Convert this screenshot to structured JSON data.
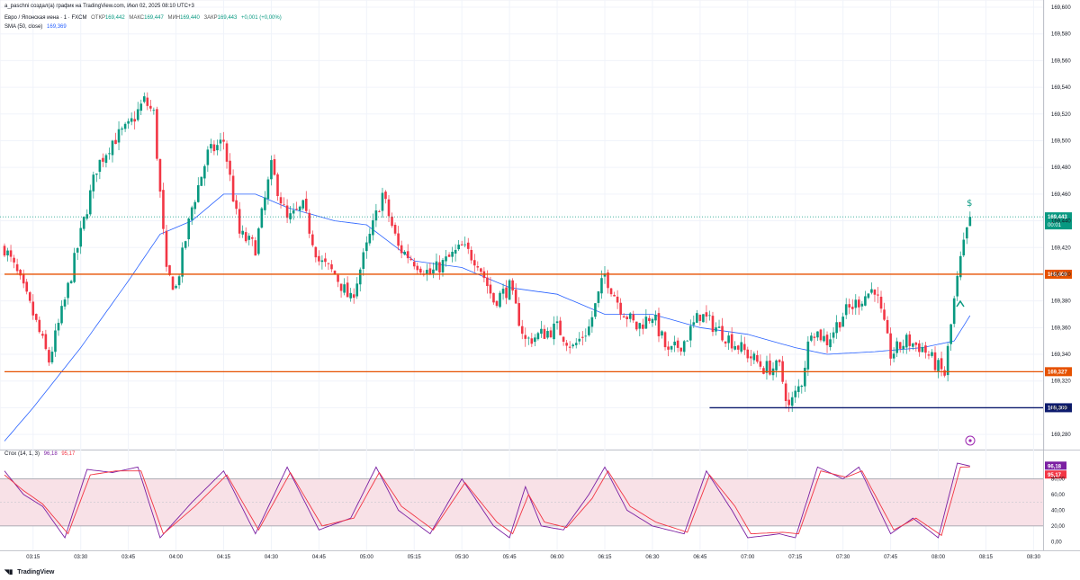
{
  "author_line": "a_paschni создал(а) график на TradingView.com, Июл 02, 2025 08:10 UTC+3",
  "legend": {
    "symbol": "Евро / Японская иена · 1 · FXCM",
    "open_label": "ОТКР",
    "open": "169,442",
    "high_label": "МАКС",
    "high": "169,447",
    "low_label": "МИН",
    "low": "169,440",
    "close_label": "ЗАКР",
    "close": "169,443",
    "change": "+0,001 (+0,00%)",
    "sma_label": "SMA (50, close)",
    "sma_value": "169,369"
  },
  "stoch_legend": {
    "label": "Стох (14, 1, 3)",
    "k": "96,18",
    "d": "95,17"
  },
  "branding": "TradingView",
  "colors": {
    "up": "#089981",
    "down": "#f23645",
    "sma": "#2962ff",
    "level": "#e65100",
    "level_blue": "#0d1b6e",
    "stoch_k": "#7b1fa2",
    "stoch_d": "#f23645",
    "stoch_band": "#f8e1e7"
  },
  "chart_data": [
    {
      "type": "candlestick",
      "y_ticks": [
        "169,600",
        "169,580",
        "169,560",
        "169,540",
        "169,520",
        "169,500",
        "169,480",
        "169,460",
        "169,440",
        "169,420",
        "169,400",
        "169,380",
        "169,360",
        "169,340",
        "169,320",
        "169,300",
        "169,280"
      ],
      "ylim": [
        169.272,
        169.6
      ],
      "x_ticks": [
        "03:15",
        "03:30",
        "03:45",
        "04:00",
        "04:15",
        "04:30",
        "04:45",
        "05:00",
        "05:15",
        "05:30",
        "05:45",
        "06:00",
        "06:15",
        "06:30",
        "06:45",
        "07:00",
        "07:15",
        "07:30",
        "07:45",
        "08:00",
        "08:15",
        "08:30"
      ],
      "xlim": [
        "03:06",
        "08:33"
      ],
      "close_anchors": [
        [
          "03:06",
          169.42
        ],
        [
          "03:10",
          169.4
        ],
        [
          "03:15",
          169.37
        ],
        [
          "03:20",
          169.335
        ],
        [
          "03:25",
          169.38
        ],
        [
          "03:30",
          169.43
        ],
        [
          "03:35",
          169.48
        ],
        [
          "03:40",
          169.5
        ],
        [
          "03:45",
          169.51
        ],
        [
          "03:50",
          169.53
        ],
        [
          "03:53",
          169.52
        ],
        [
          "03:57",
          169.4
        ],
        [
          "04:00",
          169.39
        ],
        [
          "04:05",
          169.45
        ],
        [
          "04:10",
          169.49
        ],
        [
          "04:15",
          169.5
        ],
        [
          "04:20",
          169.43
        ],
        [
          "04:25",
          169.42
        ],
        [
          "04:30",
          169.48
        ],
        [
          "04:35",
          169.44
        ],
        [
          "04:40",
          169.45
        ],
        [
          "04:45",
          169.41
        ],
        [
          "04:50",
          169.4
        ],
        [
          "04:55",
          169.38
        ],
        [
          "05:00",
          169.42
        ],
        [
          "05:05",
          169.46
        ],
        [
          "05:10",
          169.42
        ],
        [
          "05:15",
          169.41
        ],
        [
          "05:20",
          169.4
        ],
        [
          "05:25",
          169.41
        ],
        [
          "05:30",
          169.42
        ],
        [
          "05:35",
          169.41
        ],
        [
          "05:40",
          169.38
        ],
        [
          "05:45",
          169.39
        ],
        [
          "05:50",
          169.35
        ],
        [
          "06:00",
          169.36
        ],
        [
          "06:05",
          169.345
        ],
        [
          "06:10",
          169.36
        ],
        [
          "06:15",
          169.4
        ],
        [
          "06:20",
          169.375
        ],
        [
          "06:25",
          169.36
        ],
        [
          "06:30",
          169.37
        ],
        [
          "06:35",
          169.34
        ],
        [
          "06:40",
          169.35
        ],
        [
          "06:45",
          169.37
        ],
        [
          "06:50",
          169.36
        ],
        [
          "06:55",
          169.35
        ],
        [
          "07:00",
          169.34
        ],
        [
          "07:05",
          169.33
        ],
        [
          "07:10",
          169.33
        ],
        [
          "07:13",
          169.3
        ],
        [
          "07:17",
          169.32
        ],
        [
          "07:20",
          169.36
        ],
        [
          "07:25",
          169.35
        ],
        [
          "07:30",
          169.37
        ],
        [
          "07:35",
          169.38
        ],
        [
          "07:40",
          169.39
        ],
        [
          "07:45",
          169.34
        ],
        [
          "07:50",
          169.35
        ],
        [
          "07:55",
          169.345
        ],
        [
          "08:00",
          169.33
        ],
        [
          "08:02",
          169.325
        ],
        [
          "08:05",
          169.38
        ],
        [
          "08:07",
          169.41
        ],
        [
          "08:10",
          169.443
        ]
      ],
      "sma_anchors": [
        [
          "03:06",
          169.275
        ],
        [
          "03:15",
          169.3
        ],
        [
          "03:30",
          169.345
        ],
        [
          "03:45",
          169.395
        ],
        [
          "03:55",
          169.43
        ],
        [
          "04:05",
          169.44
        ],
        [
          "04:15",
          169.46
        ],
        [
          "04:25",
          169.46
        ],
        [
          "04:35",
          169.45
        ],
        [
          "04:50",
          169.44
        ],
        [
          "05:00",
          169.437
        ],
        [
          "05:15",
          169.41
        ],
        [
          "05:30",
          169.405
        ],
        [
          "05:45",
          169.39
        ],
        [
          "06:00",
          169.385
        ],
        [
          "06:15",
          169.37
        ],
        [
          "06:30",
          169.37
        ],
        [
          "06:45",
          169.36
        ],
        [
          "07:00",
          169.355
        ],
        [
          "07:15",
          169.345
        ],
        [
          "07:25",
          169.34
        ],
        [
          "07:40",
          169.342
        ],
        [
          "07:55",
          169.345
        ],
        [
          "08:05",
          169.35
        ],
        [
          "08:10",
          169.369
        ]
      ],
      "horizontal_levels": [
        {
          "value": 169.4,
          "label": "169,400",
          "color": "#e65100",
          "from": "03:06"
        },
        {
          "value": 169.327,
          "label": "169,327",
          "color": "#e65100",
          "from": "03:06"
        },
        {
          "value": 169.3,
          "label": "169,300",
          "color": "#0d1b6e",
          "from": "06:48"
        }
      ],
      "last_price": {
        "value": 169.443,
        "label": "169,443",
        "timer": "00:01"
      }
    },
    {
      "type": "line",
      "name": "stochastic",
      "y_ticks": [
        "80,00",
        "60,00",
        "40,00",
        "20,00",
        "0,00"
      ],
      "ylim": [
        -3,
        108
      ],
      "bands": [
        20,
        80
      ],
      "k_anchors": [
        [
          "03:06",
          90
        ],
        [
          "03:12",
          60
        ],
        [
          "03:18",
          45
        ],
        [
          "03:25",
          5
        ],
        [
          "03:32",
          92
        ],
        [
          "03:40",
          88
        ],
        [
          "03:48",
          95
        ],
        [
          "03:55",
          5
        ],
        [
          "04:05",
          50
        ],
        [
          "04:15",
          90
        ],
        [
          "04:25",
          10
        ],
        [
          "04:35",
          95
        ],
        [
          "04:45",
          15
        ],
        [
          "04:55",
          30
        ],
        [
          "05:03",
          95
        ],
        [
          "05:10",
          40
        ],
        [
          "05:20",
          10
        ],
        [
          "05:30",
          80
        ],
        [
          "05:40",
          20
        ],
        [
          "05:45",
          5
        ],
        [
          "05:50",
          70
        ],
        [
          "05:55",
          20
        ],
        [
          "06:02",
          15
        ],
        [
          "06:10",
          60
        ],
        [
          "06:15",
          95
        ],
        [
          "06:22",
          40
        ],
        [
          "06:30",
          20
        ],
        [
          "06:40",
          10
        ],
        [
          "06:47",
          90
        ],
        [
          "06:55",
          40
        ],
        [
          "07:00",
          5
        ],
        [
          "07:10",
          10
        ],
        [
          "07:15",
          5
        ],
        [
          "07:22",
          95
        ],
        [
          "07:30",
          80
        ],
        [
          "07:35",
          95
        ],
        [
          "07:45",
          10
        ],
        [
          "07:52",
          30
        ],
        [
          "08:00",
          5
        ],
        [
          "08:06",
          100
        ],
        [
          "08:10",
          96.18
        ]
      ],
      "d_anchors": [
        [
          "03:06",
          85
        ],
        [
          "03:12",
          65
        ],
        [
          "03:18",
          48
        ],
        [
          "03:26",
          10
        ],
        [
          "03:33",
          85
        ],
        [
          "03:41",
          90
        ],
        [
          "03:49",
          90
        ],
        [
          "03:56",
          10
        ],
        [
          "04:06",
          45
        ],
        [
          "04:16",
          85
        ],
        [
          "04:26",
          15
        ],
        [
          "04:36",
          88
        ],
        [
          "04:46",
          20
        ],
        [
          "04:56",
          30
        ],
        [
          "05:04",
          88
        ],
        [
          "05:11",
          45
        ],
        [
          "05:21",
          15
        ],
        [
          "05:31",
          75
        ],
        [
          "05:41",
          25
        ],
        [
          "05:46",
          10
        ],
        [
          "05:51",
          60
        ],
        [
          "05:56",
          25
        ],
        [
          "06:03",
          18
        ],
        [
          "06:11",
          55
        ],
        [
          "06:16",
          90
        ],
        [
          "06:23",
          45
        ],
        [
          "06:31",
          25
        ],
        [
          "06:41",
          12
        ],
        [
          "06:48",
          85
        ],
        [
          "06:56",
          45
        ],
        [
          "07:01",
          10
        ],
        [
          "07:11",
          12
        ],
        [
          "07:16",
          10
        ],
        [
          "07:23",
          90
        ],
        [
          "07:31",
          82
        ],
        [
          "07:36",
          90
        ],
        [
          "07:46",
          15
        ],
        [
          "07:53",
          30
        ],
        [
          "08:01",
          8
        ],
        [
          "08:07",
          95
        ],
        [
          "08:10",
          95.17
        ]
      ]
    }
  ]
}
